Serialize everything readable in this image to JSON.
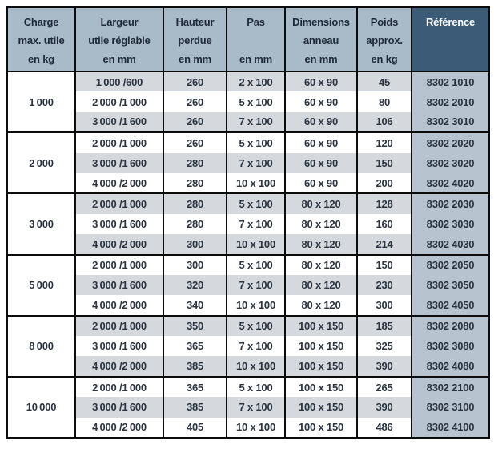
{
  "colors": {
    "header_bg": "#a9bac8",
    "header_text": "#1f2a38",
    "ref_header_bg": "#3b5b76",
    "ref_header_text": "#ffffff",
    "row_gray": "#d5d8dc",
    "row_white": "#ffffff",
    "ref_cell_bg": "#b7c4d0",
    "cell_text": "#2b3440",
    "border": "#0c0c0c"
  },
  "table": {
    "headers": [
      {
        "lines": [
          "Charge",
          "max. utile",
          "en kg"
        ]
      },
      {
        "lines": [
          "Largeur",
          "utile réglable",
          "en mm"
        ]
      },
      {
        "lines": [
          "Hauteur",
          "perdue",
          "en mm"
        ]
      },
      {
        "lines": [
          "Pas",
          "",
          "en mm"
        ]
      },
      {
        "lines": [
          "Dimensions",
          "anneau",
          "en mm"
        ]
      },
      {
        "lines": [
          "Poids",
          "approx.",
          "en kg"
        ]
      },
      {
        "lines": [
          "Référence",
          "",
          ""
        ]
      }
    ],
    "groups": [
      {
        "charge": "1 000",
        "rows": [
          [
            "1 000 /600",
            "260",
            "2 x 100",
            "60 x 90",
            "45",
            "8302 1010"
          ],
          [
            "2 000 /1 000",
            "260",
            "5 x 100",
            "60 x 90",
            "80",
            "8302 2010"
          ],
          [
            "3 000 /1 600",
            "260",
            "7 x 100",
            "60 x 90",
            "106",
            "8302 3010"
          ]
        ]
      },
      {
        "charge": "2 000",
        "rows": [
          [
            "2 000 /1 000",
            "260",
            "5 x 100",
            "60 x 90",
            "120",
            "8302 2020"
          ],
          [
            "3 000 /1 600",
            "280",
            "7 x 100",
            "60 x 90",
            "150",
            "8302 3020"
          ],
          [
            "4 000 /2 000",
            "280",
            "10 x 100",
            "60 x 90",
            "200",
            "8302 4020"
          ]
        ]
      },
      {
        "charge": "3 000",
        "rows": [
          [
            "2 000 /1 000",
            "280",
            "5 x 100",
            "80 x 120",
            "128",
            "8302 2030"
          ],
          [
            "3 000 /1 600",
            "280",
            "7 x 100",
            "80 x 120",
            "160",
            "8302 3030"
          ],
          [
            "4 000 /2 000",
            "300",
            "10 x 100",
            "80 x 120",
            "214",
            "8302 4030"
          ]
        ]
      },
      {
        "charge": "5 000",
        "rows": [
          [
            "2 000 /1 000",
            "300",
            "5 x 100",
            "80 x 120",
            "150",
            "8302 2050"
          ],
          [
            "3 000 /1 600",
            "320",
            "7 x 100",
            "80 x 120",
            "230",
            "8302 3050"
          ],
          [
            "4 000 /2 000",
            "340",
            "10 x 100",
            "80 x 120",
            "300",
            "8302 4050"
          ]
        ]
      },
      {
        "charge": "8 000",
        "rows": [
          [
            "2 000 /1 000",
            "350",
            "5 x 100",
            "100 x 150",
            "185",
            "8302 2080"
          ],
          [
            "3 000 /1 600",
            "365",
            "7 x 100",
            "100 x 150",
            "325",
            "8302 3080"
          ],
          [
            "4 000 /2 000",
            "385",
            "10 x 100",
            "100 x 150",
            "390",
            "8302 4080"
          ]
        ]
      },
      {
        "charge": "10 000",
        "rows": [
          [
            "2 000 /1 000",
            "365",
            "5 x 100",
            "100 x 150",
            "265",
            "8302 2100"
          ],
          [
            "3 000 /1 600",
            "385",
            "7 x 100",
            "100 x 150",
            "390",
            "8302 3100"
          ],
          [
            "4 000 /2 000",
            "405",
            "10 x 100",
            "100 x 150",
            "486",
            "8302 4100"
          ]
        ]
      }
    ]
  }
}
